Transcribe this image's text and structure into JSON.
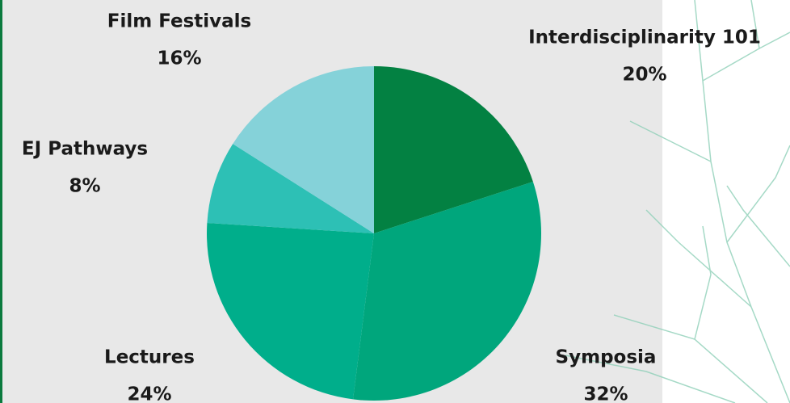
{
  "chart_data": {
    "type": "pie",
    "categories": [
      "Interdisciplinarity 101",
      "Symposia",
      "Lectures",
      "EJ Pathways",
      "Film Festivals"
    ],
    "values": [
      20,
      32,
      24,
      8,
      16
    ],
    "value_labels": [
      "20%",
      "32%",
      "24%",
      "8%",
      "16%"
    ],
    "colors": [
      "#038142",
      "#00a67c",
      "#00ae8b",
      "#2dc0b5",
      "#85d2d9"
    ]
  }
}
